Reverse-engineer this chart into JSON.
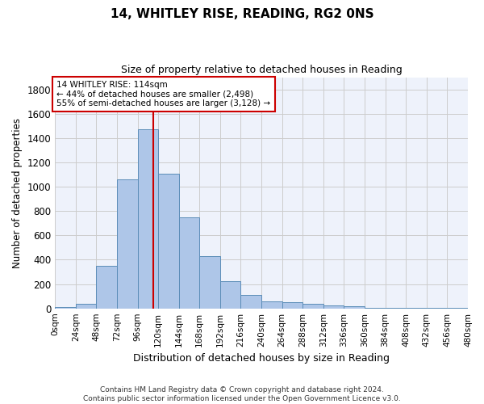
{
  "title_line1": "14, WHITLEY RISE, READING, RG2 0NS",
  "title_line2": "Size of property relative to detached houses in Reading",
  "xlabel": "Distribution of detached houses by size in Reading",
  "ylabel": "Number of detached properties",
  "bin_edges": [
    0,
    24,
    48,
    72,
    96,
    120,
    144,
    168,
    192,
    216,
    240,
    264,
    288,
    312,
    336,
    360,
    384,
    408,
    432,
    456,
    480
  ],
  "bar_heights": [
    10,
    35,
    350,
    1060,
    1470,
    1110,
    745,
    430,
    225,
    110,
    55,
    50,
    35,
    25,
    20,
    5,
    5,
    2,
    2,
    2
  ],
  "bar_color": "#aec6e8",
  "bar_edge_color": "#5b8db8",
  "property_size": 114,
  "vline_color": "#cc0000",
  "annotation_line1": "14 WHITLEY RISE: 114sqm",
  "annotation_line2": "← 44% of detached houses are smaller (2,498)",
  "annotation_line3": "55% of semi-detached houses are larger (3,128) →",
  "annotation_box_color": "#ffffff",
  "annotation_box_edge_color": "#cc0000",
  "ylim": [
    0,
    1900
  ],
  "yticks": [
    0,
    200,
    400,
    600,
    800,
    1000,
    1200,
    1400,
    1600,
    1800
  ],
  "xtick_labels": [
    "0sqm",
    "24sqm",
    "48sqm",
    "72sqm",
    "96sqm",
    "120sqm",
    "144sqm",
    "168sqm",
    "192sqm",
    "216sqm",
    "240sqm",
    "264sqm",
    "288sqm",
    "312sqm",
    "336sqm",
    "360sqm",
    "384sqm",
    "408sqm",
    "432sqm",
    "456sqm",
    "480sqm"
  ],
  "footer_line1": "Contains HM Land Registry data © Crown copyright and database right 2024.",
  "footer_line2": "Contains public sector information licensed under the Open Government Licence v3.0.",
  "grid_color": "#cccccc",
  "background_color": "#eef2fb",
  "fig_width": 6.0,
  "fig_height": 5.0,
  "title1_fontsize": 11,
  "title2_fontsize": 9,
  "ylabel_fontsize": 8.5,
  "xlabel_fontsize": 9,
  "ytick_fontsize": 8.5,
  "xtick_fontsize": 7.5,
  "annotation_fontsize": 7.5,
  "footer_fontsize": 6.5
}
